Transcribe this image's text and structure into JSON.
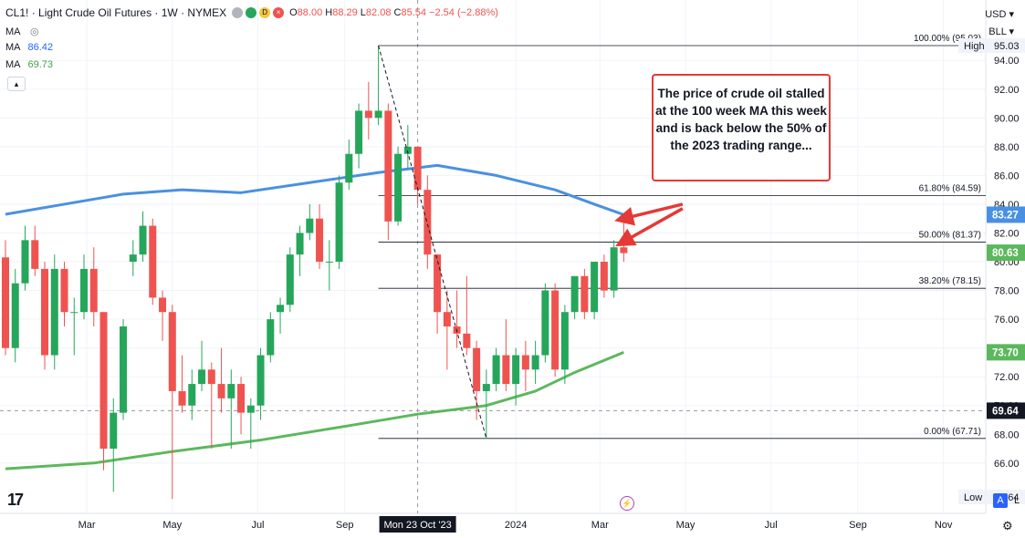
{
  "header": {
    "symbol": "CL1!",
    "title": "Light Crude Oil Futures · 1W · NYMEX",
    "ohlc": {
      "o_label": "O",
      "o": "88.00",
      "h_label": "H",
      "h": "88.29",
      "l_label": "L",
      "l": "82.08",
      "c_label": "C",
      "c": "85.54",
      "change": "−2.54 (−2.88%)"
    },
    "dot_icons": [
      "gray",
      "green",
      "yellow-D",
      "red-close"
    ]
  },
  "indicators": [
    {
      "label": "MA",
      "value": "",
      "icon": "eye-slash-icon"
    },
    {
      "label": "MA",
      "value": "86.42",
      "color": "#2962ff"
    },
    {
      "label": "MA",
      "value": "69.73",
      "color": "#43a047"
    }
  ],
  "top_right": {
    "currency": "USD",
    "unit": "BLL"
  },
  "annotation": "The price of crude oil stalled at the 100 week MA this week and is back below the 50% of the 2023 trading range...",
  "colors": {
    "up": "#26a65b",
    "down": "#ef5350",
    "ma100": "#4a90e2",
    "ma200": "#5cb85c",
    "arrow": "#e53935"
  },
  "chart_data": {
    "type": "candlestick",
    "ylim": [
      62.5,
      98.2
    ],
    "y_ticks": [
      66.0,
      68.0,
      70.0,
      72.0,
      74.0,
      76.0,
      78.0,
      80.0,
      82.0,
      84.0,
      86.0,
      88.0,
      90.0,
      92.0,
      94.0
    ],
    "x_ticks": [
      "Mar",
      "May",
      "Jul",
      "Sep",
      "2024",
      "Mar",
      "May",
      "Jul",
      "Sep",
      "Nov"
    ],
    "x_tick_dates": [
      "2023-03-01",
      "2023-05-01",
      "2023-07-01",
      "2023-09-01",
      "2024-01-01",
      "2024-03-01",
      "2024-05-01",
      "2024-07-01",
      "2024-09-01",
      "2024-11-01"
    ],
    "crosshair_date_label": "Mon 23 Oct '23",
    "crosshair_date": "2023-10-23",
    "crosshair_price": 69.64,
    "price_labels": [
      {
        "text": "95.03",
        "value": 95.03,
        "note": "High",
        "style": "plain"
      },
      {
        "text": "83.27",
        "value": 83.27,
        "style": "blue"
      },
      {
        "text": "80.63",
        "value": 80.63,
        "style": "green"
      },
      {
        "text": "73.70",
        "value": 73.7,
        "style": "green"
      },
      {
        "text": "69.64",
        "value": 69.64,
        "style": "dark"
      },
      {
        "text": "63.64",
        "value": 63.64,
        "note": "Low",
        "style": "plain"
      }
    ],
    "fib_levels": [
      {
        "label": "100.00% (95.03)",
        "value": 95.03
      },
      {
        "label": "61.80% (84.59)",
        "value": 84.59
      },
      {
        "label": "50.00% (81.37)",
        "value": 81.37
      },
      {
        "label": "38.20% (78.15)",
        "value": 78.15
      },
      {
        "label": "0.00% (67.71)",
        "value": 67.71
      }
    ],
    "fib_start_date": "2023-09-25",
    "fib_low_date": "2023-12-11",
    "candles": [
      [
        "2023-01-02",
        80.3,
        81.5,
        73.5,
        74.0
      ],
      [
        "2023-01-09",
        74.0,
        79.5,
        73.0,
        78.5
      ],
      [
        "2023-01-16",
        78.5,
        82.5,
        78.0,
        81.5
      ],
      [
        "2023-01-23",
        81.5,
        82.5,
        79.0,
        79.5
      ],
      [
        "2023-01-30",
        79.5,
        80.0,
        72.5,
        73.5
      ],
      [
        "2023-02-06",
        73.5,
        80.5,
        72.5,
        79.5
      ],
      [
        "2023-02-13",
        79.5,
        80.0,
        75.5,
        76.5
      ],
      [
        "2023-02-20",
        76.5,
        77.5,
        73.5,
        76.5
      ],
      [
        "2023-02-27",
        76.5,
        80.5,
        76.0,
        79.5
      ],
      [
        "2023-03-06",
        79.5,
        81.0,
        75.5,
        76.5
      ],
      [
        "2023-03-13",
        76.5,
        76.5,
        65.5,
        67.0
      ],
      [
        "2023-03-20",
        67.0,
        70.5,
        64.0,
        69.5
      ],
      [
        "2023-03-27",
        69.5,
        76.0,
        69.0,
        75.5
      ],
      [
        "2023-04-03",
        80.0,
        81.5,
        79.0,
        80.5
      ],
      [
        "2023-04-10",
        80.5,
        83.5,
        80.0,
        82.5
      ],
      [
        "2023-04-17",
        82.5,
        83.0,
        77.0,
        77.5
      ],
      [
        "2023-04-24",
        77.5,
        78.0,
        74.5,
        76.5
      ],
      [
        "2023-05-01",
        76.5,
        77.0,
        63.5,
        71.0
      ],
      [
        "2023-05-08",
        71.0,
        73.5,
        69.5,
        70.0
      ],
      [
        "2023-05-15",
        70.0,
        72.5,
        69.0,
        71.5
      ],
      [
        "2023-05-22",
        71.5,
        74.5,
        71.0,
        72.5
      ],
      [
        "2023-05-29",
        72.5,
        73.0,
        67.0,
        71.5
      ],
      [
        "2023-06-05",
        71.5,
        74.0,
        69.5,
        70.5
      ],
      [
        "2023-06-12",
        70.5,
        72.5,
        67.0,
        71.5
      ],
      [
        "2023-06-19",
        71.5,
        72.0,
        68.0,
        69.5
      ],
      [
        "2023-06-26",
        69.5,
        70.5,
        67.0,
        70.0
      ],
      [
        "2023-07-03",
        70.0,
        74.0,
        69.0,
        73.5
      ],
      [
        "2023-07-10",
        73.5,
        76.5,
        73.0,
        76.0
      ],
      [
        "2023-07-17",
        76.5,
        77.5,
        75.0,
        77.0
      ],
      [
        "2023-07-24",
        77.0,
        81.0,
        76.5,
        80.5
      ],
      [
        "2023-07-31",
        80.5,
        82.5,
        79.0,
        82.0
      ],
      [
        "2023-08-07",
        82.0,
        84.0,
        81.5,
        83.0
      ],
      [
        "2023-08-14",
        83.0,
        84.0,
        79.5,
        80.0
      ],
      [
        "2023-08-21",
        80.0,
        81.5,
        78.0,
        80.0
      ],
      [
        "2023-08-28",
        80.0,
        86.0,
        79.5,
        85.5
      ],
      [
        "2023-09-04",
        85.5,
        88.5,
        85.0,
        87.5
      ],
      [
        "2023-09-11",
        87.5,
        91.0,
        86.5,
        90.5
      ],
      [
        "2023-09-18",
        90.5,
        92.5,
        88.5,
        90.0
      ],
      [
        "2023-09-25",
        90.0,
        95.0,
        89.5,
        90.5
      ],
      [
        "2023-10-02",
        90.5,
        91.0,
        81.5,
        82.8
      ],
      [
        "2023-10-09",
        82.8,
        88.0,
        82.5,
        87.5
      ],
      [
        "2023-10-16",
        87.5,
        89.5,
        86.5,
        88.0
      ],
      [
        "2023-10-23",
        88.0,
        88.0,
        84.0,
        85.0
      ],
      [
        "2023-10-30",
        85.0,
        86.0,
        79.5,
        80.5
      ],
      [
        "2023-11-06",
        80.5,
        80.5,
        75.0,
        76.5
      ],
      [
        "2023-11-13",
        76.5,
        78.0,
        72.5,
        75.5
      ],
      [
        "2023-11-20",
        75.5,
        78.0,
        74.0,
        75.0
      ],
      [
        "2023-11-27",
        75.0,
        79.0,
        73.5,
        74.0
      ],
      [
        "2023-12-04",
        74.0,
        74.5,
        69.0,
        71.0
      ],
      [
        "2023-12-11",
        71.0,
        72.5,
        67.7,
        71.5
      ],
      [
        "2023-12-18",
        71.5,
        74.0,
        71.0,
        73.5
      ],
      [
        "2023-12-25",
        73.5,
        76.0,
        71.0,
        71.5
      ],
      [
        "2024-01-01",
        71.5,
        74.0,
        70.0,
        73.5
      ],
      [
        "2024-01-08",
        73.5,
        74.5,
        71.0,
        72.5
      ],
      [
        "2024-01-15",
        72.5,
        74.5,
        71.5,
        73.5
      ],
      [
        "2024-01-22",
        73.5,
        78.5,
        73.0,
        78.0
      ],
      [
        "2024-01-29",
        78.0,
        78.5,
        72.0,
        72.5
      ],
      [
        "2024-02-05",
        72.5,
        77.0,
        71.5,
        76.5
      ],
      [
        "2024-02-12",
        76.5,
        79.0,
        76.0,
        79.0
      ],
      [
        "2024-02-19",
        79.0,
        79.5,
        76.0,
        76.5
      ],
      [
        "2024-02-26",
        76.5,
        80.0,
        76.0,
        80.0
      ],
      [
        "2024-03-04",
        80.0,
        80.5,
        77.5,
        78.0
      ],
      [
        "2024-03-11",
        78.0,
        81.5,
        77.5,
        81.0
      ],
      [
        "2024-03-18",
        81.0,
        83.0,
        80.0,
        80.6
      ]
    ],
    "ma100": [
      [
        "2023-01-02",
        83.3
      ],
      [
        "2023-02-13",
        84.0
      ],
      [
        "2023-03-27",
        84.7
      ],
      [
        "2023-05-08",
        85.0
      ],
      [
        "2023-06-19",
        84.8
      ],
      [
        "2023-08-07",
        85.5
      ],
      [
        "2023-09-25",
        86.2
      ],
      [
        "2023-11-06",
        86.7
      ],
      [
        "2023-12-18",
        86.0
      ],
      [
        "2024-01-29",
        85.0
      ],
      [
        "2024-02-26",
        84.0
      ],
      [
        "2024-03-18",
        83.27
      ]
    ],
    "ma200": [
      [
        "2023-01-02",
        65.6
      ],
      [
        "2023-03-06",
        66.0
      ],
      [
        "2023-05-01",
        66.8
      ],
      [
        "2023-07-03",
        67.6
      ],
      [
        "2023-09-04",
        68.6
      ],
      [
        "2023-10-23",
        69.4
      ],
      [
        "2023-12-11",
        70.0
      ],
      [
        "2024-01-15",
        71.0
      ],
      [
        "2024-02-12",
        72.3
      ],
      [
        "2024-03-18",
        73.7
      ]
    ],
    "dashed_line": [
      [
        "2023-09-25",
        95.03
      ],
      [
        "2023-12-11",
        67.71
      ]
    ],
    "arrows": [
      {
        "from": [
          "2024-04-29",
          84.0
        ],
        "to": [
          "2024-03-18",
          83.0
        ]
      },
      {
        "from": [
          "2024-04-29",
          83.7
        ],
        "to": [
          "2024-03-18",
          81.4
        ]
      }
    ]
  }
}
